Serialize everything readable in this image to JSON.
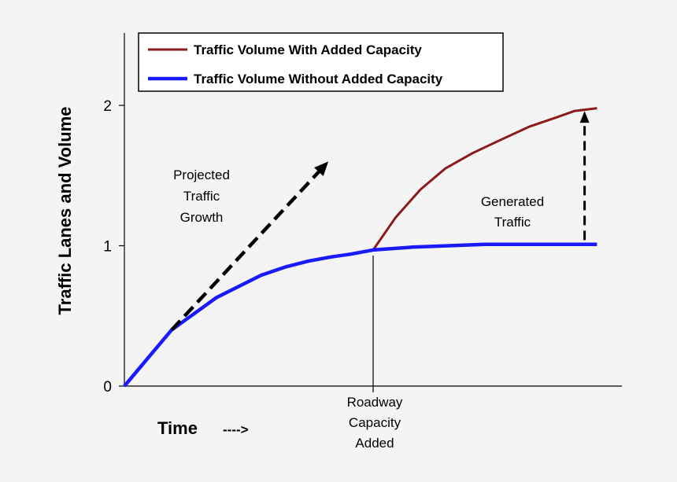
{
  "chart_data": {
    "type": "line",
    "title": "",
    "xlabel": "Time",
    "xlabel_suffix": "---->",
    "ylabel": "Traffic Lanes and Volume",
    "y_ticks": [
      "0",
      "1",
      "2"
    ],
    "ylim": [
      0,
      2.5
    ],
    "xlim": [
      0,
      1
    ],
    "grid": false,
    "legend_position": "top",
    "series": [
      {
        "name": "Traffic Volume With Added Capacity",
        "color": "#8b1a1a",
        "x": [
          0.5,
          0.545,
          0.595,
          0.645,
          0.7,
          0.76,
          0.815,
          0.865,
          0.905,
          0.95
        ],
        "y": [
          0.97,
          1.2,
          1.4,
          1.55,
          1.66,
          1.76,
          1.85,
          1.91,
          1.96,
          1.98
        ]
      },
      {
        "name": "Traffic Volume Without Added Capacity",
        "color": "#1a1aff",
        "x": [
          0,
          0.095,
          0.185,
          0.275,
          0.325,
          0.37,
          0.415,
          0.455,
          0.5,
          0.58,
          0.725,
          0.95
        ],
        "y": [
          0,
          0.4,
          0.63,
          0.79,
          0.85,
          0.89,
          0.92,
          0.94,
          0.97,
          0.99,
          1.01,
          1.01
        ]
      }
    ],
    "annotations": {
      "projected": [
        "Projected",
        "Traffic",
        "Growth"
      ],
      "generated": [
        "Generated",
        "Traffic"
      ],
      "capacity_added": [
        "Roadway",
        "Capacity",
        "Added"
      ],
      "capacity_added_x": 0.5,
      "growth_arrow": {
        "from": [
          0.095,
          0.4
        ],
        "to": [
          0.41,
          1.6
        ]
      },
      "generated_arrow": {
        "x": 0.925,
        "from_y": 1.04,
        "to_y": 1.96
      }
    }
  }
}
